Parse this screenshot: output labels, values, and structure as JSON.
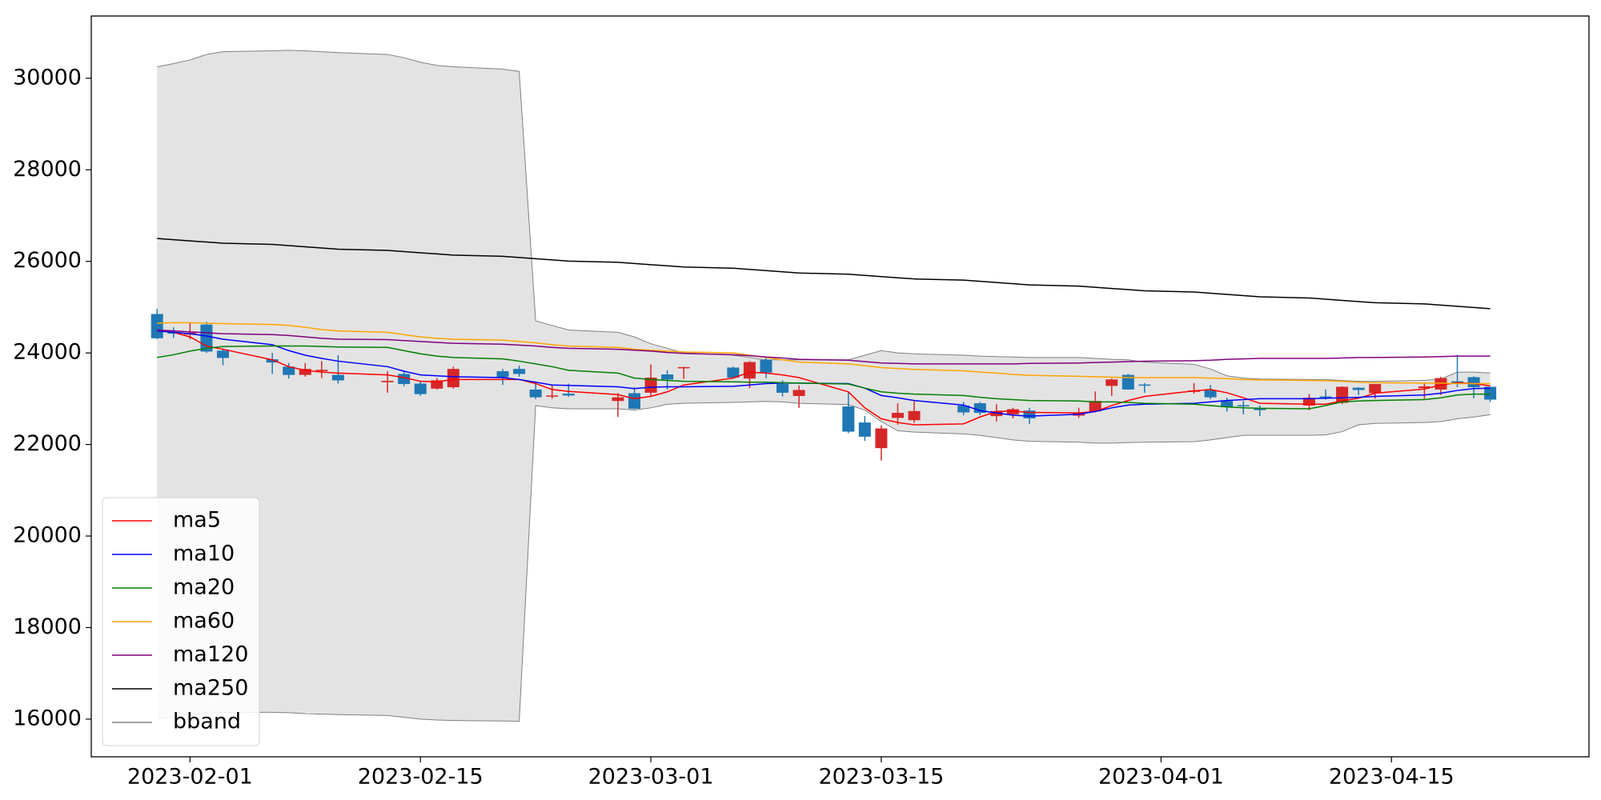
{
  "chart_data": {
    "type": "candlestick",
    "x": [
      "2023-01-30",
      "2023-01-31",
      "2023-02-01",
      "2023-02-02",
      "2023-02-03",
      "2023-02-06",
      "2023-02-07",
      "2023-02-08",
      "2023-02-09",
      "2023-02-10",
      "2023-02-13",
      "2023-02-14",
      "2023-02-15",
      "2023-02-16",
      "2023-02-17",
      "2023-02-20",
      "2023-02-21",
      "2023-02-22",
      "2023-02-23",
      "2023-02-24",
      "2023-02-27",
      "2023-02-28",
      "2023-03-01",
      "2023-03-02",
      "2023-03-03",
      "2023-03-06",
      "2023-03-07",
      "2023-03-08",
      "2023-03-09",
      "2023-03-10",
      "2023-03-13",
      "2023-03-14",
      "2023-03-15",
      "2023-03-16",
      "2023-03-17",
      "2023-03-20",
      "2023-03-21",
      "2023-03-22",
      "2023-03-23",
      "2023-03-24",
      "2023-03-27",
      "2023-03-28",
      "2023-03-29",
      "2023-03-30",
      "2023-03-31",
      "2023-04-03",
      "2023-04-04",
      "2023-04-05",
      "2023-04-06",
      "2023-04-07",
      "2023-04-10",
      "2023-04-11",
      "2023-04-12",
      "2023-04-13",
      "2023-04-14",
      "2023-04-17",
      "2023-04-18",
      "2023-04-19",
      "2023-04-20",
      "2023-04-21"
    ],
    "open": [
      24850,
      24450,
      24400,
      24620,
      24050,
      23860,
      23700,
      23520,
      23600,
      23520,
      23360,
      23540,
      23330,
      23220,
      23250,
      23600,
      23650,
      23200,
      23050,
      23110,
      22950,
      23120,
      23130,
      23530,
      23670,
      23680,
      23440,
      23850,
      23320,
      23060,
      22830,
      22480,
      21920,
      22580,
      22530,
      22850,
      22900,
      22620,
      22660,
      22740,
      22630,
      22720,
      23280,
      23520,
      23310,
      23150,
      23180,
      22950,
      22860,
      22780,
      22850,
      23050,
      22910,
      23240,
      23120,
      23230,
      23200,
      23380,
      23470,
      23260
    ],
    "high": [
      24960,
      24560,
      24650,
      24680,
      24100,
      24000,
      23780,
      23780,
      23820,
      23950,
      23600,
      23620,
      23380,
      23450,
      23700,
      23650,
      23720,
      23380,
      23300,
      23330,
      23120,
      23250,
      23750,
      23620,
      23700,
      23700,
      23820,
      23900,
      23400,
      23290,
      23150,
      22620,
      22420,
      22900,
      22950,
      22930,
      22930,
      22880,
      22800,
      22800,
      22800,
      23160,
      23440,
      23540,
      23340,
      23340,
      23300,
      23020,
      22950,
      22850,
      23100,
      23200,
      23270,
      23250,
      23320,
      23330,
      23480,
      23960,
      23490,
      23260
    ],
    "low": [
      24300,
      24330,
      24300,
      24000,
      23730,
      23540,
      23440,
      23480,
      23450,
      23330,
      23130,
      23270,
      23060,
      23200,
      23220,
      23300,
      23480,
      22990,
      23000,
      23040,
      22600,
      22770,
      23060,
      23200,
      23430,
      23450,
      23230,
      23450,
      23050,
      22800,
      22250,
      22080,
      21650,
      22430,
      22470,
      22640,
      22640,
      22500,
      22570,
      22450,
      22580,
      22700,
      23060,
      23200,
      23130,
      23110,
      22990,
      22720,
      22660,
      22620,
      22750,
      22980,
      22880,
      23080,
      23000,
      23000,
      23080,
      23250,
      23010,
      22930
    ],
    "close": [
      24320,
      24420,
      24440,
      24030,
      23890,
      23790,
      23520,
      23650,
      23630,
      23400,
      23390,
      23320,
      23100,
      23400,
      23650,
      23470,
      23540,
      23030,
      23070,
      23070,
      23030,
      22780,
      23460,
      23420,
      23690,
      23460,
      23800,
      23570,
      23130,
      23190,
      22280,
      22170,
      22350,
      22690,
      22730,
      22700,
      22690,
      22730,
      22770,
      22570,
      22700,
      22950,
      23420,
      23200,
      23290,
      23180,
      23030,
      22820,
      22840,
      22750,
      23020,
      23020,
      23260,
      23190,
      23320,
      23270,
      23450,
      23330,
      23250,
      22980
    ],
    "up_color": "#d62728",
    "down_color": "#1f77b4",
    "series": [
      {
        "name": "ma5",
        "color": "#ff0000",
        "values": [
          24480,
          24450,
          24350,
          24150,
          24080,
          23850,
          23700,
          23620,
          23580,
          23560,
          23520,
          23460,
          23380,
          23370,
          23420,
          23420,
          23420,
          23330,
          23200,
          23160,
          23090,
          23000,
          23050,
          23150,
          23300,
          23450,
          23580,
          23560,
          23520,
          23460,
          23150,
          22800,
          22560,
          22480,
          22430,
          22450,
          22600,
          22720,
          22730,
          22700,
          22690,
          22720,
          22850,
          22960,
          23050,
          23170,
          23200,
          23130,
          23020,
          22900,
          22880,
          22880,
          22950,
          23010,
          23120,
          23210,
          23300,
          23350,
          23330,
          23280
        ]
      },
      {
        "name": "ma10",
        "color": "#0000ff",
        "values": [
          24480,
          24450,
          24420,
          24370,
          24300,
          24180,
          24050,
          23950,
          23880,
          23820,
          23700,
          23600,
          23520,
          23500,
          23480,
          23460,
          23420,
          23360,
          23300,
          23290,
          23260,
          23220,
          23250,
          23260,
          23260,
          23270,
          23300,
          23330,
          23340,
          23340,
          23330,
          23230,
          23070,
          23020,
          22960,
          22860,
          22740,
          22690,
          22640,
          22620,
          22660,
          22720,
          22800,
          22860,
          22880,
          22900,
          22930,
          22960,
          22980,
          23000,
          23000,
          23010,
          23020,
          23030,
          23050,
          23080,
          23120,
          23180,
          23220,
          23230
        ]
      },
      {
        "name": "ma20",
        "color": "#008000",
        "values": [
          23900,
          23960,
          24040,
          24100,
          24140,
          24150,
          24150,
          24150,
          24140,
          24130,
          24120,
          24050,
          23980,
          23930,
          23900,
          23870,
          23820,
          23760,
          23700,
          23620,
          23560,
          23450,
          23420,
          23400,
          23380,
          23370,
          23360,
          23360,
          23350,
          23340,
          23320,
          23230,
          23150,
          23120,
          23100,
          23070,
          23030,
          23000,
          22980,
          22960,
          22950,
          22930,
          22930,
          22920,
          22900,
          22880,
          22850,
          22820,
          22800,
          22790,
          22780,
          22850,
          22930,
          22950,
          22960,
          22980,
          23020,
          23080,
          23100,
          23100
        ]
      },
      {
        "name": "ma60",
        "color": "#ffa500",
        "values": [
          24650,
          24660,
          24660,
          24650,
          24640,
          24620,
          24600,
          24560,
          24510,
          24480,
          24450,
          24400,
          24350,
          24320,
          24300,
          24280,
          24250,
          24220,
          24180,
          24150,
          24120,
          24080,
          24060,
          24040,
          24020,
          24000,
          23950,
          23900,
          23850,
          23800,
          23760,
          23720,
          23680,
          23660,
          23640,
          23610,
          23580,
          23560,
          23530,
          23510,
          23490,
          23480,
          23470,
          23460,
          23460,
          23460,
          23450,
          23440,
          23420,
          23410,
          23400,
          23390,
          23380,
          23360,
          23350,
          23340,
          23340,
          23330,
          23330,
          23330
        ]
      },
      {
        "name": "ma120",
        "color": "#800080",
        "values": [
          24500,
          24480,
          24460,
          24440,
          24420,
          24400,
          24380,
          24350,
          24320,
          24300,
          24290,
          24270,
          24250,
          24230,
          24210,
          24190,
          24170,
          24150,
          24120,
          24100,
          24080,
          24060,
          24040,
          24010,
          23990,
          23960,
          23940,
          23910,
          23890,
          23860,
          23840,
          23810,
          23780,
          23770,
          23760,
          23760,
          23760,
          23760,
          23760,
          23770,
          23780,
          23790,
          23800,
          23810,
          23820,
          23830,
          23840,
          23860,
          23870,
          23880,
          23880,
          23880,
          23890,
          23900,
          23900,
          23910,
          23920,
          23930,
          23930,
          23930
        ]
      },
      {
        "name": "ma250",
        "color": "#000000",
        "values": [
          26500,
          26474,
          26448,
          26422,
          26396,
          26370,
          26344,
          26318,
          26292,
          26266,
          26240,
          26214,
          26188,
          26162,
          26136,
          26110,
          26084,
          26058,
          26032,
          26006,
          25980,
          25954,
          25928,
          25902,
          25876,
          25850,
          25824,
          25798,
          25772,
          25746,
          25720,
          25694,
          25668,
          25642,
          25616,
          25590,
          25564,
          25538,
          25512,
          25486,
          25460,
          25434,
          25408,
          25382,
          25356,
          25330,
          25304,
          25278,
          25252,
          25226,
          25200,
          25174,
          25148,
          25122,
          25096,
          25070,
          25044,
          25018,
          24992,
          24966
        ]
      }
    ],
    "bband": {
      "name": "bband",
      "color": "#808080",
      "fill": "#e3e3e3",
      "upper": [
        30250,
        30320,
        30400,
        30520,
        30580,
        30600,
        30610,
        30600,
        30580,
        30560,
        30520,
        30450,
        30350,
        30280,
        30250,
        30200,
        30150,
        24700,
        24600,
        24500,
        24450,
        24350,
        24200,
        24100,
        24000,
        23950,
        23900,
        23850,
        23850,
        23850,
        23850,
        23950,
        24050,
        24000,
        23980,
        23950,
        23930,
        23920,
        23910,
        23900,
        23900,
        23880,
        23860,
        23850,
        23800,
        23750,
        23650,
        23500,
        23450,
        23430,
        23420,
        23420,
        23400,
        23380,
        23380,
        23400,
        23430,
        23580,
        23580,
        23560
      ],
      "lower": [
        16000,
        16050,
        16100,
        16130,
        16150,
        16150,
        16140,
        16120,
        16110,
        16100,
        16080,
        16040,
        16000,
        15980,
        15970,
        15960,
        15950,
        22850,
        22800,
        22780,
        22780,
        22750,
        22800,
        22880,
        22900,
        22920,
        22930,
        22940,
        22930,
        22900,
        22870,
        22750,
        22500,
        22300,
        22270,
        22230,
        22200,
        22150,
        22100,
        22070,
        22050,
        22030,
        22030,
        22040,
        22050,
        22060,
        22100,
        22150,
        22200,
        22200,
        22200,
        22210,
        22280,
        22430,
        22460,
        22480,
        22500,
        22560,
        22600,
        22650
      ]
    },
    "xlim": [
      "2023-01-26",
      "2023-04-27"
    ],
    "xticks": [
      "2023-02-01",
      "2023-02-15",
      "2023-03-01",
      "2023-03-15",
      "2023-04-01",
      "2023-04-15"
    ],
    "ylim": [
      15177,
      31360
    ],
    "yticks": [
      16000,
      18000,
      20000,
      22000,
      24000,
      26000,
      28000,
      30000
    ],
    "grid": false,
    "legend": "lower left"
  }
}
